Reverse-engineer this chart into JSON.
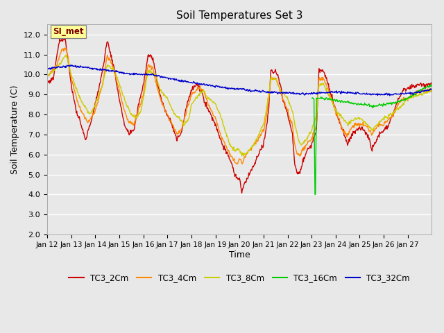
{
  "title": "Soil Temperatures Set 3",
  "xlabel": "Time",
  "ylabel": "Soil Temperature (C)",
  "ylim": [
    2.0,
    12.5
  ],
  "yticks": [
    2.0,
    3.0,
    4.0,
    5.0,
    6.0,
    7.0,
    8.0,
    9.0,
    10.0,
    11.0,
    12.0
  ],
  "background_color": "#e8e8e8",
  "plot_bg_color": "#e8e8e8",
  "legend_labels": [
    "TC3_2Cm",
    "TC3_4Cm",
    "TC3_8Cm",
    "TC3_16Cm",
    "TC3_32Cm"
  ],
  "line_colors": [
    "#cc0000",
    "#ff8800",
    "#cccc00",
    "#00cc00",
    "#0000cc"
  ],
  "annotation_text": "SI_met",
  "annotation_color": "#800000",
  "annotation_bg": "#ffff99",
  "x_tick_labels": [
    "Jan 12",
    "Jan 13",
    "Jan 14",
    "Jan 15",
    "Jan 16",
    "Jan 17",
    "Jan 18",
    "Jan 19",
    "Jan 20",
    "Jan 21",
    "Jan 22",
    "Jan 23",
    "Jan 24",
    "Jan 25",
    "Jan 26",
    "Jan 27"
  ],
  "num_days": 16
}
